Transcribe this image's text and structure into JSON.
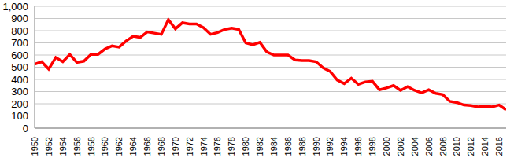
{
  "chart_data": {
    "type": "line",
    "x": [
      1950,
      1951,
      1952,
      1953,
      1954,
      1955,
      1956,
      1957,
      1958,
      1959,
      1960,
      1961,
      1962,
      1963,
      1964,
      1965,
      1966,
      1967,
      1968,
      1969,
      1970,
      1971,
      1972,
      1973,
      1974,
      1975,
      1976,
      1977,
      1978,
      1979,
      1980,
      1981,
      1982,
      1983,
      1984,
      1985,
      1986,
      1987,
      1988,
      1989,
      1990,
      1991,
      1992,
      1993,
      1994,
      1995,
      1996,
      1997,
      1998,
      1999,
      2000,
      2001,
      2002,
      2003,
      2004,
      2005,
      2006,
      2007,
      2008,
      2009,
      2010,
      2011,
      2012,
      2013,
      2014,
      2015,
      2016,
      2017
    ],
    "values": [
      525,
      545,
      485,
      580,
      545,
      605,
      540,
      550,
      605,
      605,
      650,
      675,
      665,
      715,
      755,
      745,
      790,
      780,
      770,
      890,
      815,
      865,
      855,
      855,
      825,
      770,
      785,
      810,
      820,
      810,
      700,
      685,
      705,
      625,
      600,
      600,
      600,
      560,
      555,
      555,
      545,
      495,
      465,
      395,
      365,
      410,
      360,
      380,
      385,
      315,
      330,
      350,
      310,
      340,
      310,
      290,
      315,
      285,
      275,
      220,
      210,
      190,
      185,
      175,
      180,
      175,
      190,
      150
    ],
    "color": "#ff0000",
    "xlim": [
      1950,
      2017
    ],
    "xticks": [
      1950,
      1952,
      1954,
      1956,
      1958,
      1960,
      1962,
      1964,
      1966,
      1968,
      1970,
      1972,
      1974,
      1976,
      1978,
      1980,
      1982,
      1984,
      1986,
      1988,
      1990,
      1992,
      1994,
      1996,
      1998,
      2000,
      2002,
      2004,
      2006,
      2008,
      2010,
      2012,
      2014,
      2016
    ],
    "ylim": [
      0,
      1000
    ],
    "yticks": [
      0,
      100,
      200,
      300,
      400,
      500,
      600,
      700,
      800,
      900,
      {
        "value": 1000,
        "label": "1,000"
      }
    ],
    "grid": true
  }
}
